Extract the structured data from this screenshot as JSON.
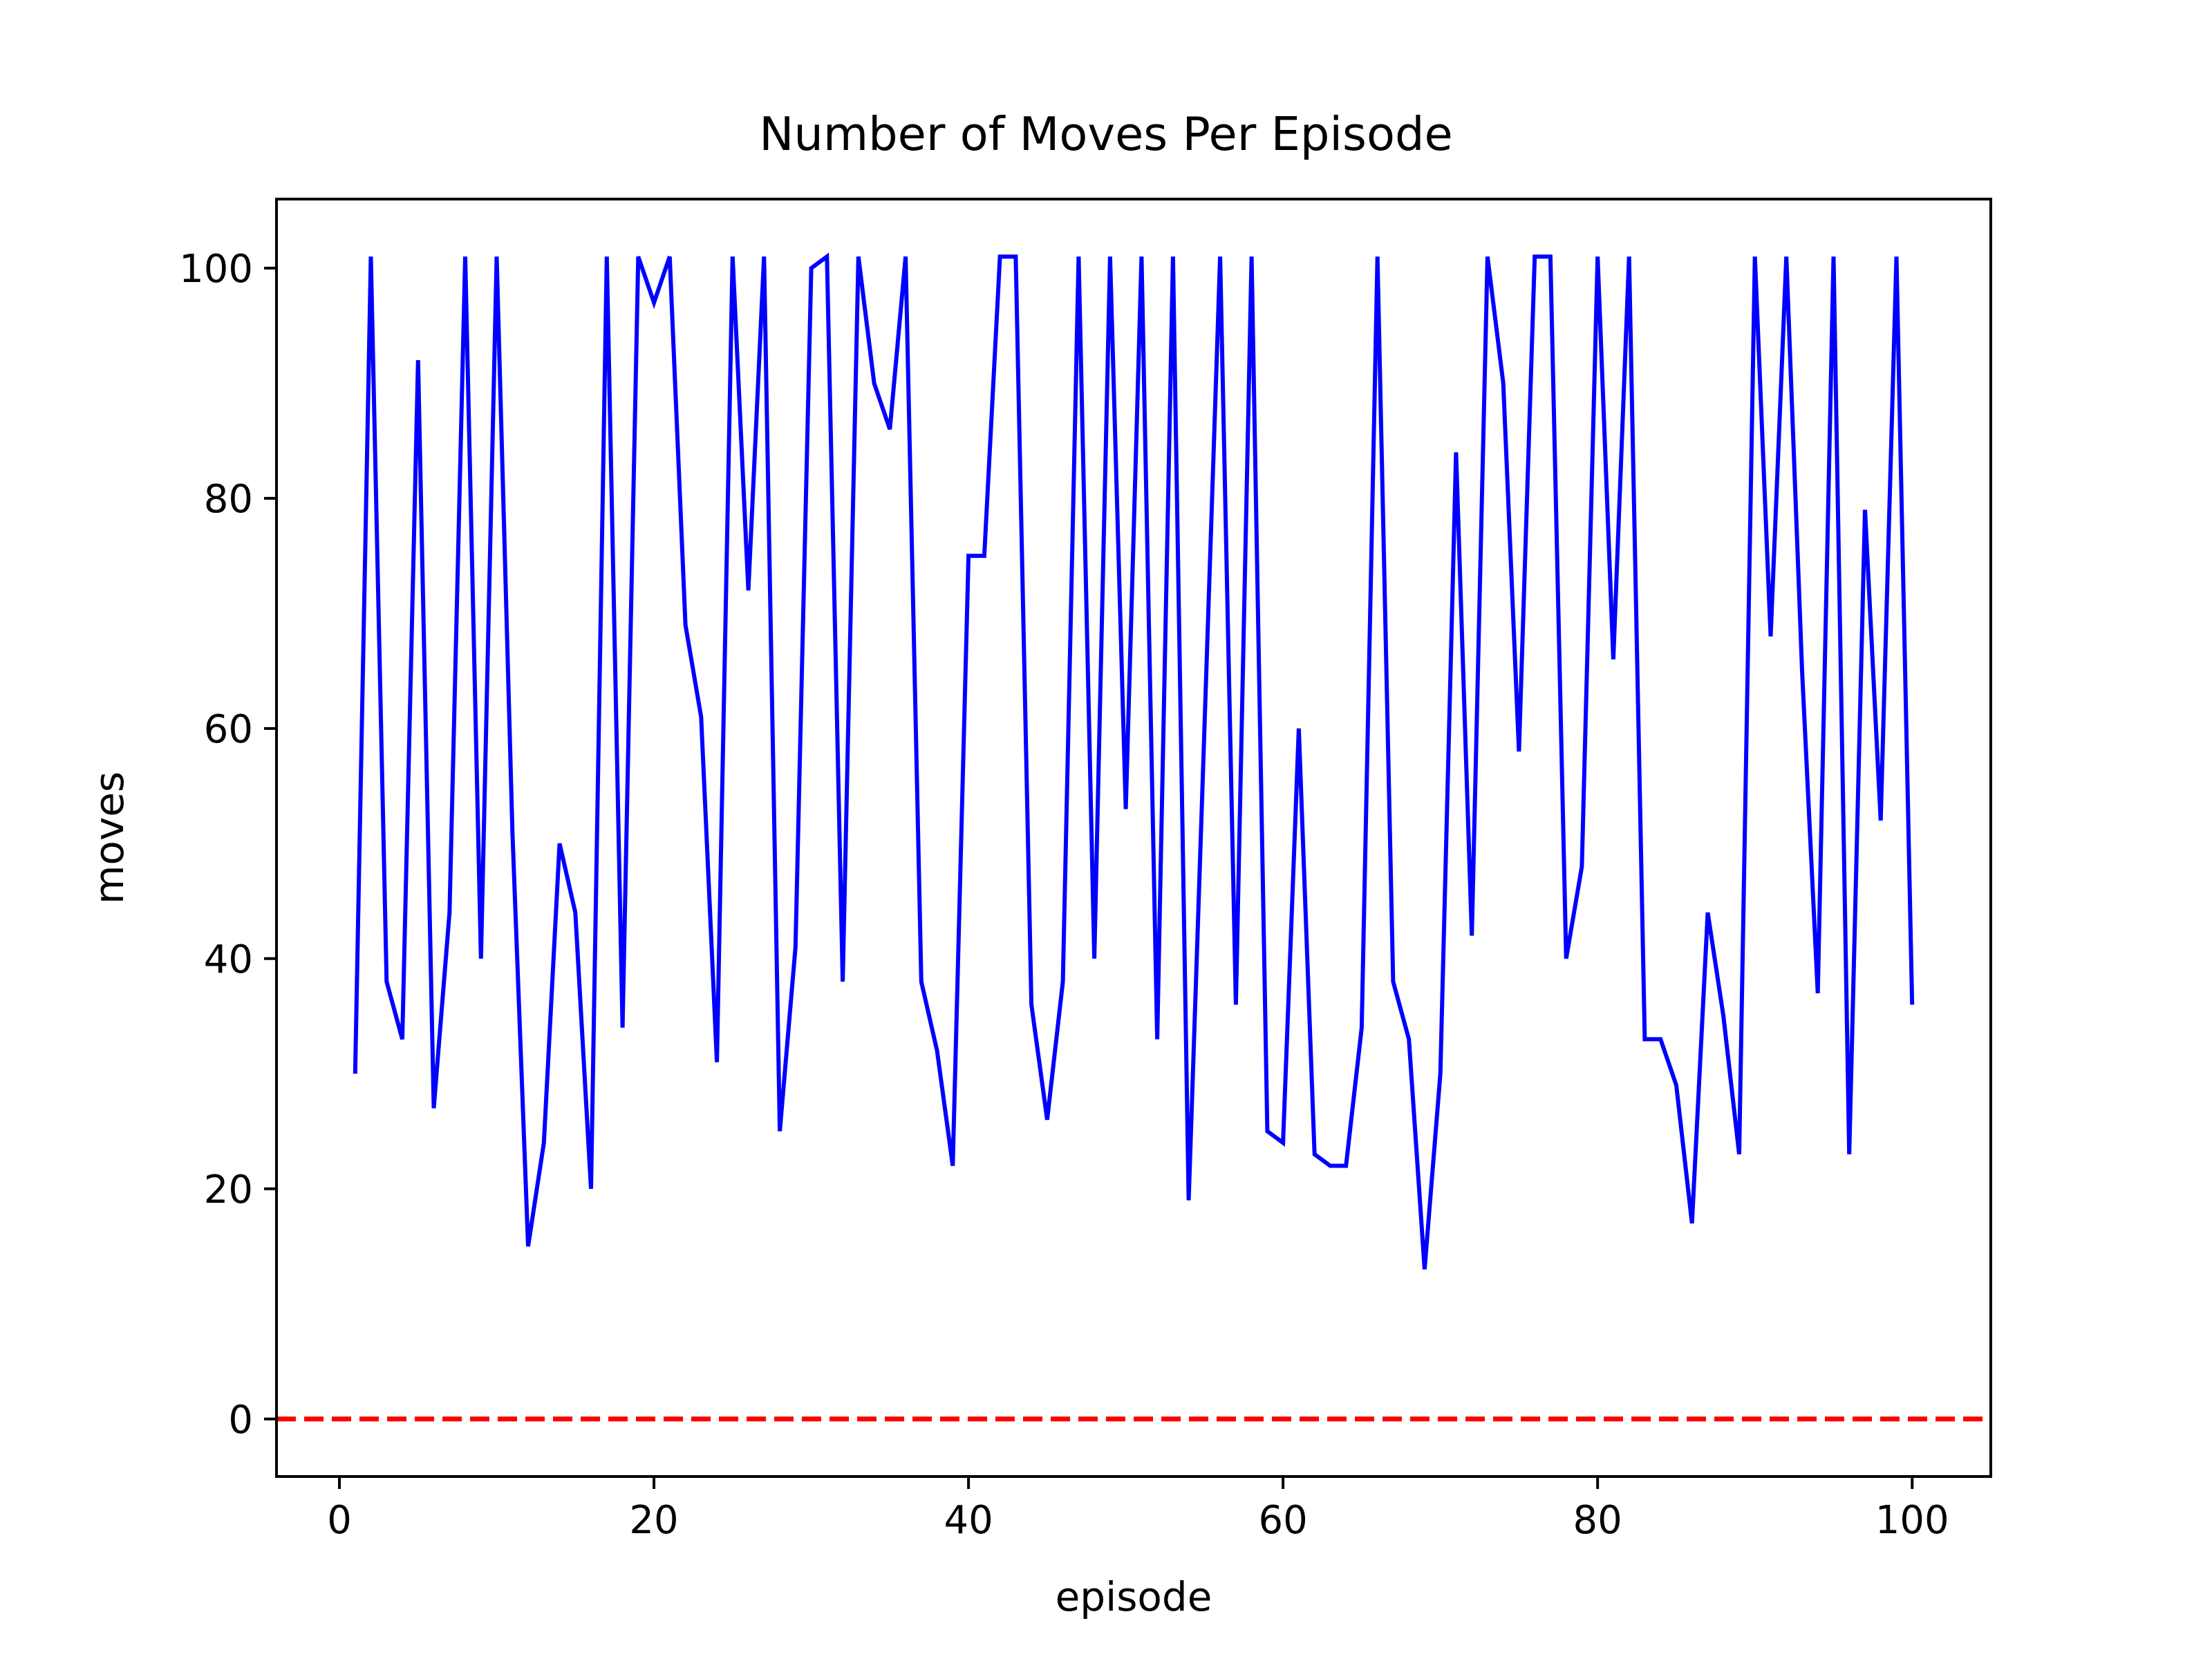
{
  "chart_data": {
    "type": "line",
    "title": "Number of Moves Per Episode",
    "xlabel": "episode",
    "ylabel": "moves",
    "xlim": [
      -4.0,
      105.0
    ],
    "ylim": [
      -5,
      106
    ],
    "xticks": [
      0,
      20,
      40,
      60,
      80,
      100
    ],
    "yticks": [
      0,
      20,
      40,
      60,
      80,
      100
    ],
    "grid": false,
    "series": [
      {
        "color": "#0000ff",
        "style": "solid",
        "x": [
          1,
          2,
          3,
          4,
          5,
          6,
          7,
          8,
          9,
          10,
          11,
          12,
          13,
          14,
          15,
          16,
          17,
          18,
          19,
          20,
          21,
          22,
          23,
          24,
          25,
          26,
          27,
          28,
          29,
          30,
          31,
          32,
          33,
          34,
          35,
          36,
          37,
          38,
          39,
          40,
          41,
          42,
          43,
          44,
          45,
          46,
          47,
          48,
          49,
          50,
          51,
          52,
          53,
          54,
          55,
          56,
          57,
          58,
          59,
          60,
          61,
          62,
          63,
          64,
          65,
          66,
          67,
          68,
          69,
          70,
          71,
          72,
          73,
          74,
          75,
          76,
          77,
          78,
          79,
          80,
          81,
          82,
          83,
          84,
          85,
          86,
          87,
          88,
          89,
          90,
          91,
          92,
          93,
          94,
          95,
          96,
          97,
          98,
          99,
          100
        ],
        "y": [
          30,
          101,
          38,
          33,
          92,
          27,
          44,
          101,
          40,
          101,
          51,
          15,
          24,
          50,
          44,
          20,
          101,
          34,
          101,
          97,
          101,
          69,
          61,
          31,
          101,
          72,
          101,
          25,
          41,
          100,
          101,
          38,
          101,
          90,
          86,
          101,
          38,
          32,
          22,
          75,
          75,
          101,
          101,
          36,
          26,
          38,
          101,
          40,
          101,
          53,
          101,
          33,
          101,
          19,
          60,
          101,
          36,
          101,
          25,
          24,
          60,
          23,
          22,
          22,
          34,
          101,
          38,
          33,
          13,
          30,
          84,
          42,
          101,
          90,
          58,
          101,
          101,
          40,
          48,
          101,
          66,
          101,
          33,
          33,
          29,
          17,
          44,
          35,
          23,
          101,
          68,
          101,
          65,
          37,
          101,
          23,
          79,
          52,
          101,
          36
        ]
      },
      {
        "color": "#ff0000",
        "style": "dashed",
        "x": [
          -4,
          105
        ],
        "y": [
          0,
          0
        ]
      }
    ]
  }
}
